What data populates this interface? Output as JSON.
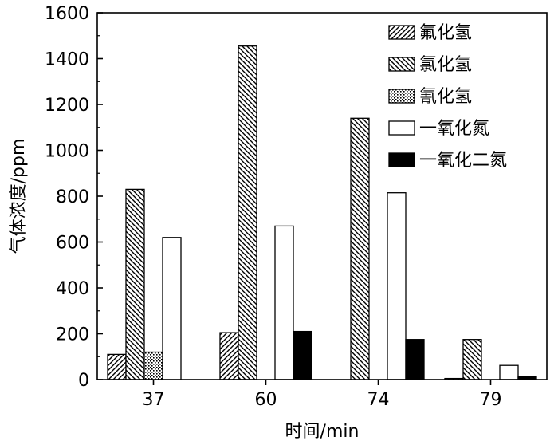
{
  "chart_data": {
    "type": "bar",
    "xlabel": "时间/min",
    "ylabel": "气体浓度/ppm",
    "categories": [
      "37",
      "60",
      "74",
      "79"
    ],
    "ylim": [
      0,
      1600
    ],
    "yticks": [
      0,
      200,
      400,
      600,
      800,
      1000,
      1200,
      1400,
      1600
    ],
    "legend_position": "top-right",
    "series": [
      {
        "name": "氟化氢",
        "pattern": "diagonal-forward",
        "values": [
          110,
          205,
          null,
          5
        ]
      },
      {
        "name": "氯化氢",
        "pattern": "diagonal-backward",
        "values": [
          830,
          1455,
          1140,
          175
        ]
      },
      {
        "name": "氰化氢",
        "pattern": "dots",
        "values": [
          120,
          null,
          null,
          null
        ]
      },
      {
        "name": "一氧化氮",
        "pattern": "hollow",
        "values": [
          620,
          670,
          815,
          62
        ]
      },
      {
        "name": "一氧化二氮",
        "pattern": "solid",
        "values": [
          null,
          210,
          175,
          14
        ]
      }
    ]
  }
}
